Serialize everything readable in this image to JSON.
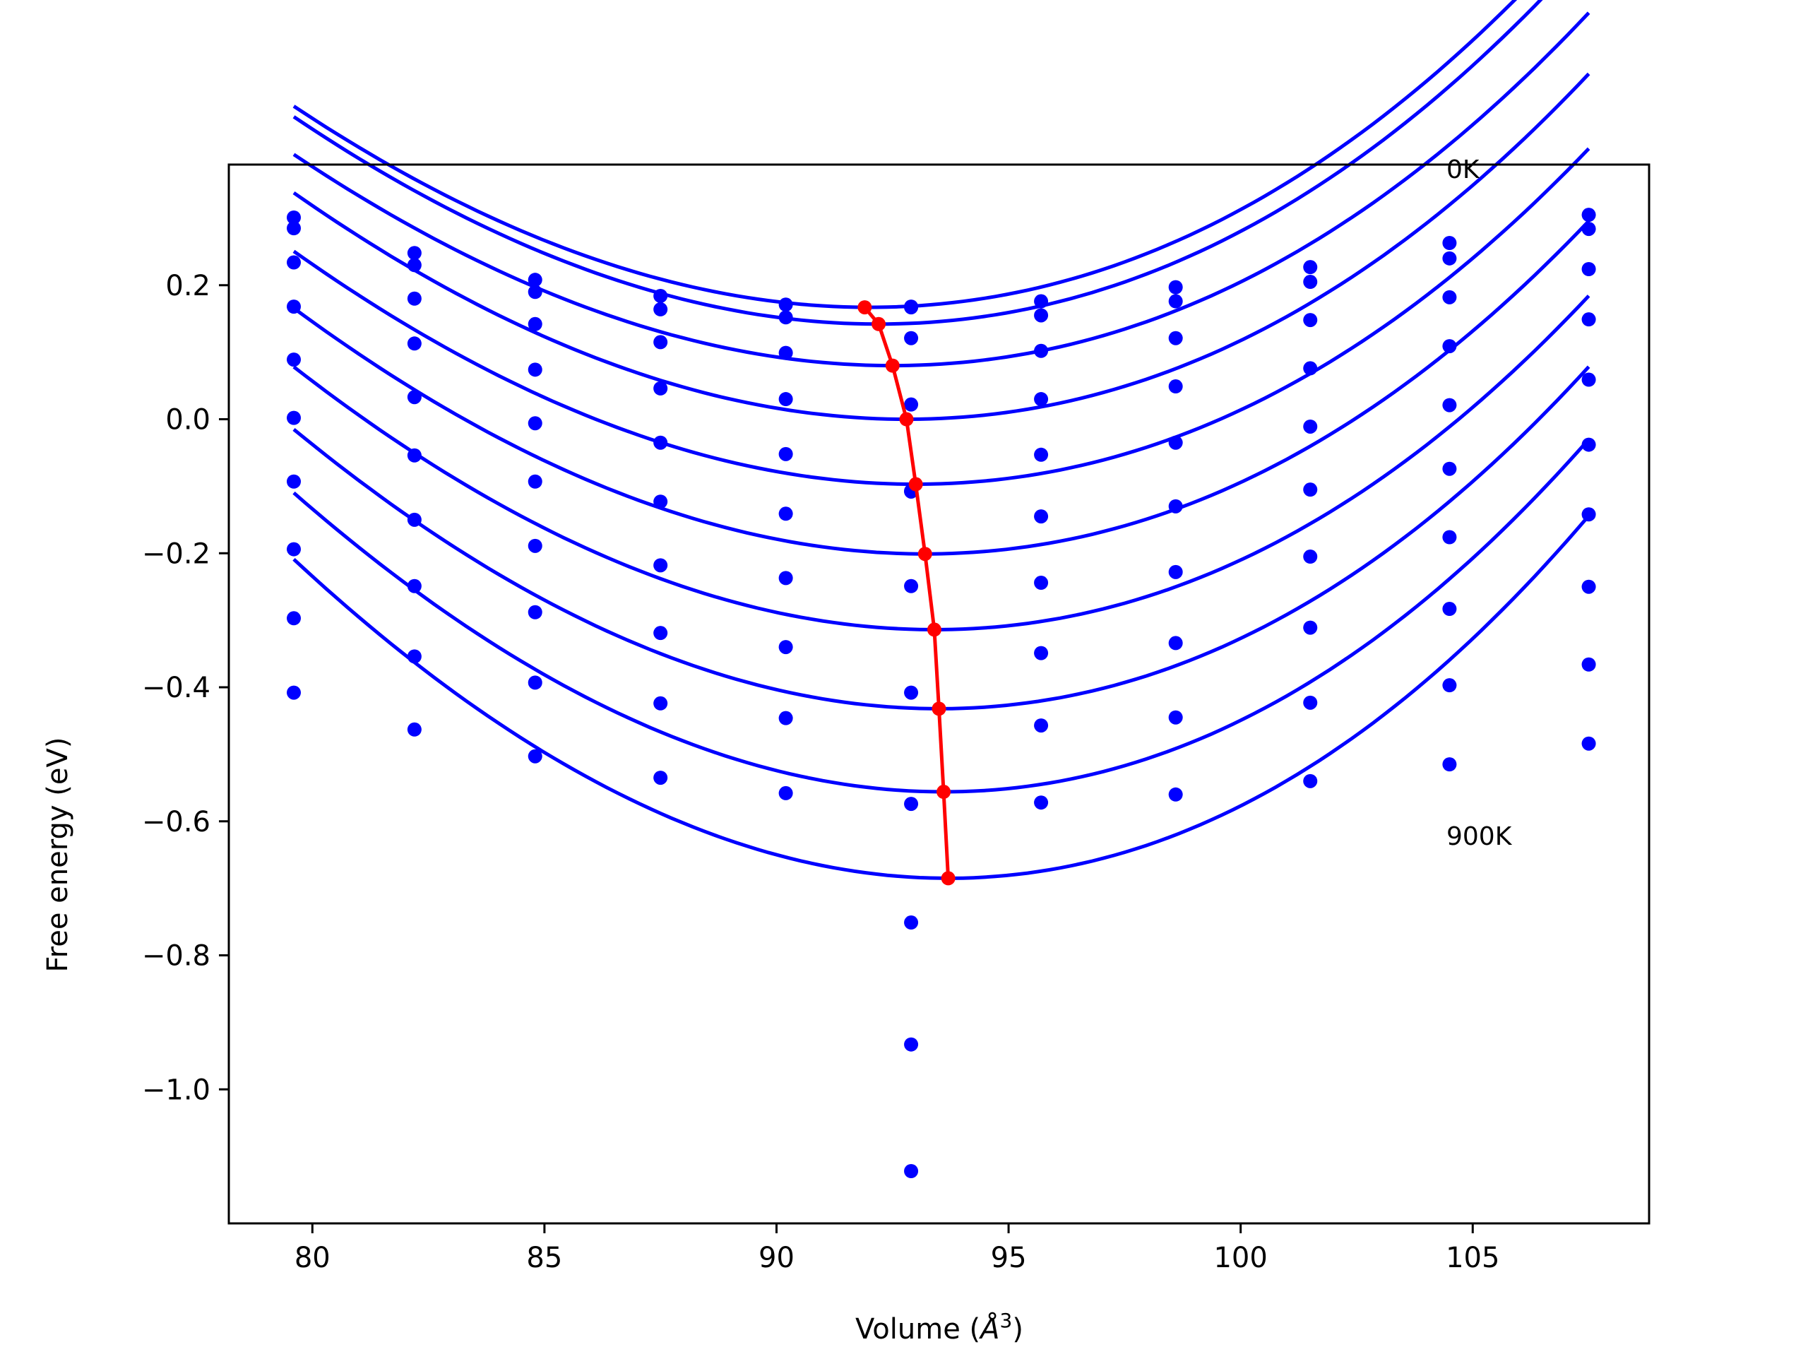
{
  "chart_data": {
    "type": "scatter",
    "xlabel": "Volume (",
    "xlabel_unit": "Å",
    "xlabel_exp": "3",
    "xlabel_close": ")",
    "ylabel": "Free energy (eV)",
    "xlim": [
      78.2,
      108.8
    ],
    "ylim": [
      -1.2,
      0.38
    ],
    "xticks": [
      80,
      85,
      90,
      95,
      100,
      105
    ],
    "xtick_labels": [
      "80",
      "85",
      "90",
      "95",
      "100",
      "105"
    ],
    "yticks": [
      -1.0,
      -0.8,
      -0.6,
      -0.4,
      -0.2,
      0.0,
      0.2
    ],
    "ytick_labels": [
      "−1.0",
      "−0.8",
      "−0.6",
      "−0.4",
      "−0.2",
      "0.0",
      "0.2"
    ],
    "annotations": [
      {
        "text": "0K",
        "x": 104.5,
        "y": 0.36
      },
      {
        "text": "900K",
        "x": 104.5,
        "y": -0.63
      }
    ],
    "x": [
      79.6,
      82.2,
      84.8,
      87.5,
      90.2,
      92.9,
      95.7,
      98.6,
      101.5,
      104.5,
      107.5
    ],
    "series": [
      {
        "values": [
          0.301,
          0.248,
          0.208,
          0.184,
          0.171,
          0.168,
          0.176,
          0.197,
          0.227,
          0.263,
          0.305
        ]
      },
      {
        "values": [
          0.285,
          0.23,
          0.19,
          0.164,
          0.152,
          0.167,
          0.155,
          0.176,
          0.205,
          0.24,
          0.284
        ]
      },
      {
        "values": [
          0.234,
          0.18,
          0.142,
          0.115,
          0.099,
          0.121,
          0.102,
          0.121,
          0.148,
          0.182,
          0.224
        ]
      },
      {
        "values": [
          0.168,
          0.113,
          0.074,
          0.046,
          0.03,
          0.022,
          0.03,
          0.049,
          0.076,
          0.109,
          0.149
        ]
      },
      {
        "values": [
          0.089,
          0.033,
          -0.006,
          -0.035,
          -0.052,
          -0.107,
          -0.053,
          -0.035,
          -0.011,
          0.021,
          0.059
        ]
      },
      {
        "values": [
          0.002,
          -0.054,
          -0.093,
          -0.123,
          -0.141,
          -0.108,
          -0.145,
          -0.13,
          -0.105,
          -0.074,
          -0.038
        ]
      },
      {
        "values": [
          -0.093,
          -0.15,
          -0.189,
          -0.218,
          -0.237,
          -0.249,
          -0.244,
          -0.228,
          -0.205,
          -0.176,
          -0.142
        ]
      },
      {
        "values": [
          -0.194,
          -0.249,
          -0.288,
          -0.319,
          -0.34,
          -0.408,
          -0.349,
          -0.334,
          -0.311,
          -0.283,
          -0.25
        ]
      },
      {
        "values": [
          -0.297,
          -0.354,
          -0.393,
          -0.424,
          -0.446,
          -0.574,
          -0.457,
          -0.445,
          -0.423,
          -0.397,
          -0.366
        ]
      },
      {
        "values": [
          -0.408,
          -0.463,
          -0.503,
          -0.535,
          -0.558,
          -0.751,
          -0.572,
          -0.56,
          -0.54,
          -0.515,
          -0.484
        ]
      }
    ],
    "extra_points": [
      {
        "x": 92.9,
        "y": -0.933
      },
      {
        "x": 92.9,
        "y": -1.122
      }
    ],
    "fit_curves": [
      {
        "v0": 92.0,
        "e0": 0.167,
        "a": 0.000215,
        "b": 1.6e-06
      },
      {
        "v0": 92.2,
        "e0": 0.142,
        "a": 0.000215,
        "b": 1.6e-06
      },
      {
        "v0": 92.5,
        "e0": 0.08,
        "a": 0.00021,
        "b": 1.6e-06
      },
      {
        "v0": 92.8,
        "e0": 0.0,
        "a": 0.000215,
        "b": 1.6e-06
      },
      {
        "v0": 93.0,
        "e0": -0.097,
        "a": 0.000215,
        "b": 1.6e-06
      },
      {
        "v0": 93.2,
        "e0": -0.201,
        "a": 0.00022,
        "b": 1.6e-06
      },
      {
        "v0": 93.4,
        "e0": -0.314,
        "a": 0.000228,
        "b": 1.6e-06
      },
      {
        "v0": 93.5,
        "e0": -0.432,
        "a": 0.000238,
        "b": 1.6e-06
      },
      {
        "v0": 93.6,
        "e0": -0.556,
        "a": 0.00025,
        "b": 1.6e-06
      },
      {
        "v0": 93.7,
        "e0": -0.685,
        "a": 0.000262,
        "b": 1.6e-06
      }
    ],
    "minima_line": {
      "x": [
        91.9,
        92.2,
        92.5,
        92.8,
        93.0,
        93.2,
        93.4,
        93.5,
        93.6,
        93.7
      ],
      "y": [
        0.167,
        0.142,
        0.08,
        0.0,
        -0.097,
        -0.201,
        -0.314,
        -0.432,
        -0.556,
        -0.685
      ]
    },
    "colors": {
      "points": "#0000ff",
      "curves": "#0000ff",
      "minima": "#ff0000",
      "axes": "#000000",
      "text": "#000000"
    }
  }
}
